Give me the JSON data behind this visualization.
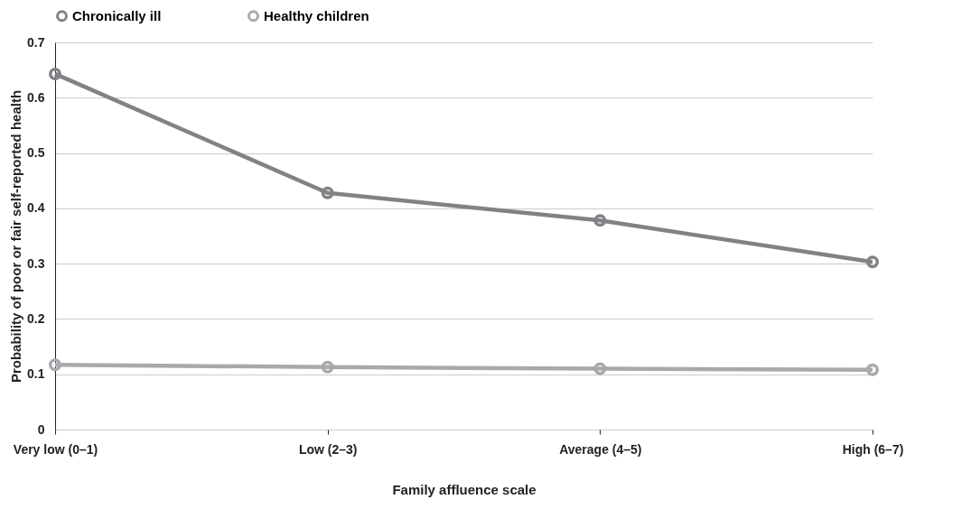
{
  "chart_data": {
    "type": "line",
    "xlabel": "Family affluence scale",
    "ylabel": "Probability of poor or fair self-reported health",
    "categories": [
      "Very low (0–1)",
      "Low (2–3)",
      "Average (4–5)",
      "High (6–7)"
    ],
    "series": [
      {
        "name": "Chronically ill",
        "color": "#808285",
        "values": [
          0.643,
          0.428,
          0.378,
          0.303
        ]
      },
      {
        "name": "Healthy children",
        "color": "#a7a9ac",
        "values": [
          0.117,
          0.113,
          0.11,
          0.108
        ]
      }
    ],
    "ylim": [
      0,
      0.7
    ],
    "yticks": [
      0,
      0.1,
      0.2,
      0.3,
      0.4,
      0.5,
      0.6,
      0.7
    ],
    "grid": "y",
    "legend": "top",
    "marker": "circle",
    "line_style": "solid"
  }
}
